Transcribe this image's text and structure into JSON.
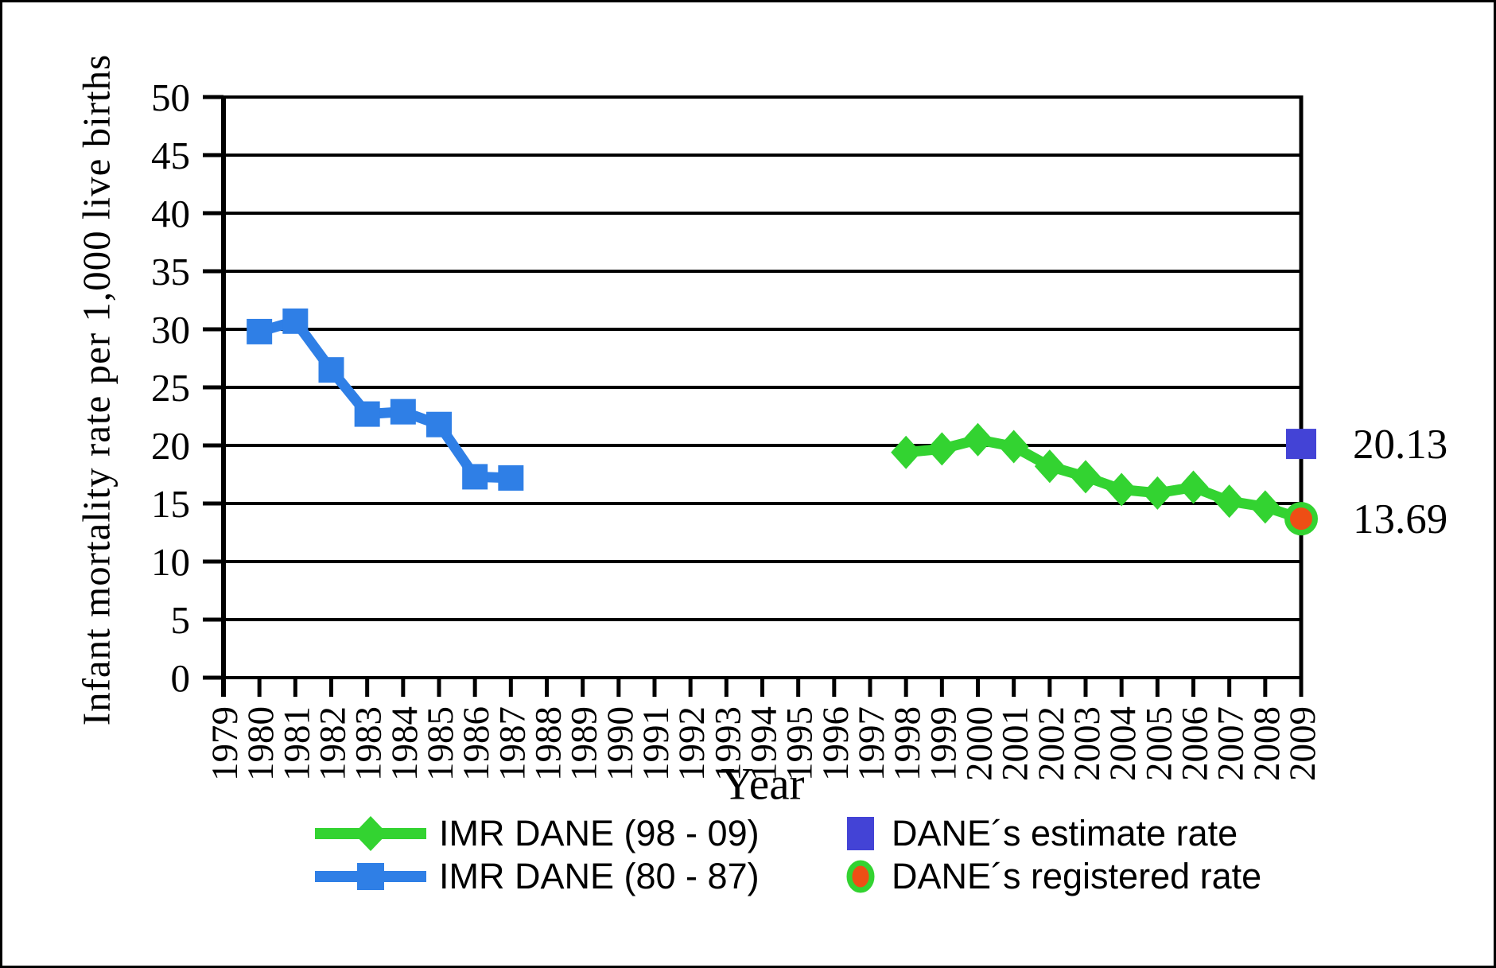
{
  "figure": {
    "background": "#ffffff",
    "border_color": "#000000"
  },
  "chart_data": {
    "type": "line",
    "title": "",
    "xlabel": "Year",
    "ylabel": "Infant mortality rate per 1,000 live births",
    "ylim": [
      0,
      50
    ],
    "ytick_step": 5,
    "grid": "horizontal",
    "legend_position": "bottom",
    "axis_color": "#000000",
    "x_axis_start": 1979,
    "x_axis_end": 2009,
    "x_tick_years": [
      1979,
      1980,
      1981,
      1982,
      1983,
      1984,
      1985,
      1986,
      1987,
      1988,
      1989,
      1990,
      1991,
      1992,
      1993,
      1994,
      1995,
      1996,
      1997,
      1998,
      1999,
      2000,
      2001,
      2002,
      2003,
      2004,
      2005,
      2006,
      2007,
      2008,
      2009
    ],
    "series": [
      {
        "name": "IMR DANE (98 - 09)",
        "color": "#33d331",
        "marker": "diamond",
        "years": [
          1998,
          1999,
          2000,
          2001,
          2002,
          2003,
          2004,
          2005,
          2006,
          2007,
          2008,
          2009
        ],
        "values": [
          19.4,
          19.7,
          20.5,
          19.9,
          18.2,
          17.3,
          16.2,
          15.9,
          16.4,
          15.2,
          14.7,
          13.69
        ]
      },
      {
        "name": "IMR DANE (80 - 87)",
        "color": "#2f7fe6",
        "marker": "square",
        "years": [
          1980,
          1981,
          1982,
          1983,
          1984,
          1985,
          1986,
          1987
        ],
        "values": [
          29.8,
          30.7,
          26.5,
          22.7,
          22.9,
          21.8,
          17.3,
          17.2
        ]
      }
    ],
    "annotations": [
      {
        "name": "DANE´s estimate rate",
        "year": 2009,
        "value": 20.13,
        "label": "20.13",
        "marker": "square",
        "color": "#4343d6"
      },
      {
        "name": "DANE´s registered rate",
        "year": 2009,
        "value": 13.69,
        "label": "13.69",
        "marker": "circle",
        "fill": "#ee4e15",
        "ring": "#33d331"
      }
    ]
  }
}
